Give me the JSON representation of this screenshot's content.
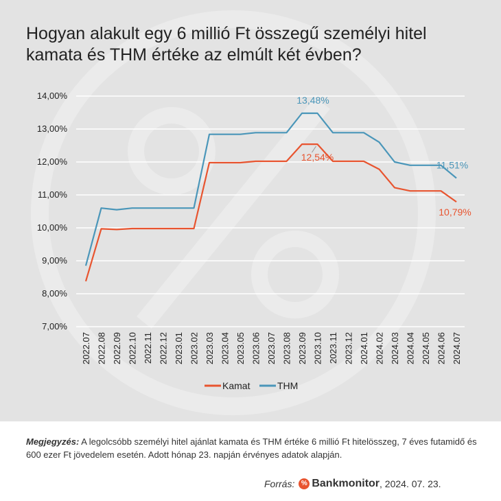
{
  "title": "Hogyan alakult egy 6 millió Ft összegű személyi hitel kamata és THM értéke az elmúlt két évben?",
  "note": {
    "label": "Megjegyzés:",
    "text": " A legolcsóbb személyi hitel ajánlat kamata és THM értéke 6 millió Ft hitelösszeg, 7 éves futamidő és 600 ezer Ft jövedelem esetén. Adott hónap 23. napján érvényes adatok alapján."
  },
  "footer": {
    "source_label": "Forrás:",
    "logo_icon_glyph": "%",
    "brand": "Bankmonitor",
    "date": ", 2024. 07. 23."
  },
  "watermark_icon": "percent-circle-icon",
  "colors": {
    "kamat": "#e8542f",
    "thm": "#4a96b9",
    "background": "#e3e3e3",
    "grid": "#ffffff"
  },
  "chart_data": {
    "type": "line",
    "title": "",
    "xlabel": "",
    "ylabel": "",
    "ylim": [
      7,
      14
    ],
    "y_ticks": [
      "7,00%",
      "8,00%",
      "9,00%",
      "10,00%",
      "11,00%",
      "12,00%",
      "13,00%",
      "14,00%"
    ],
    "grid": true,
    "legend_position": "bottom",
    "categories": [
      "2022.07",
      "2022.08",
      "2022.09",
      "2022.10",
      "2022.11",
      "2022.12",
      "2023.01",
      "2023.02",
      "2023.03",
      "2023.04",
      "2023.05",
      "2023.06",
      "2023.07",
      "2023.08",
      "2023.09",
      "2023.10",
      "2023.11",
      "2023.12",
      "2024.01",
      "2024.02",
      "2024.03",
      "2024.04",
      "2024.05",
      "2024.06",
      "2024.07"
    ],
    "series": [
      {
        "name": "Kamat",
        "color": "#e8542f",
        "values": [
          8.38,
          9.97,
          9.95,
          9.98,
          9.98,
          9.98,
          9.98,
          9.98,
          11.98,
          11.98,
          11.98,
          12.02,
          12.02,
          12.02,
          12.54,
          12.54,
          12.02,
          12.02,
          12.02,
          11.78,
          11.22,
          11.12,
          11.12,
          11.12,
          10.79
        ],
        "annotations": [
          {
            "index": 15,
            "label": "12,54%"
          },
          {
            "index": 24,
            "label": "10,79%"
          }
        ]
      },
      {
        "name": "THM",
        "color": "#4a96b9",
        "values": [
          8.85,
          10.6,
          10.55,
          10.6,
          10.6,
          10.6,
          10.6,
          10.6,
          12.84,
          12.84,
          12.84,
          12.89,
          12.89,
          12.89,
          13.48,
          13.48,
          12.89,
          12.89,
          12.89,
          12.6,
          12.0,
          11.9,
          11.9,
          11.9,
          11.51
        ],
        "annotations": [
          {
            "index": 14,
            "label": "13,48%"
          },
          {
            "index": 24,
            "label": "11,51%"
          }
        ]
      }
    ]
  }
}
